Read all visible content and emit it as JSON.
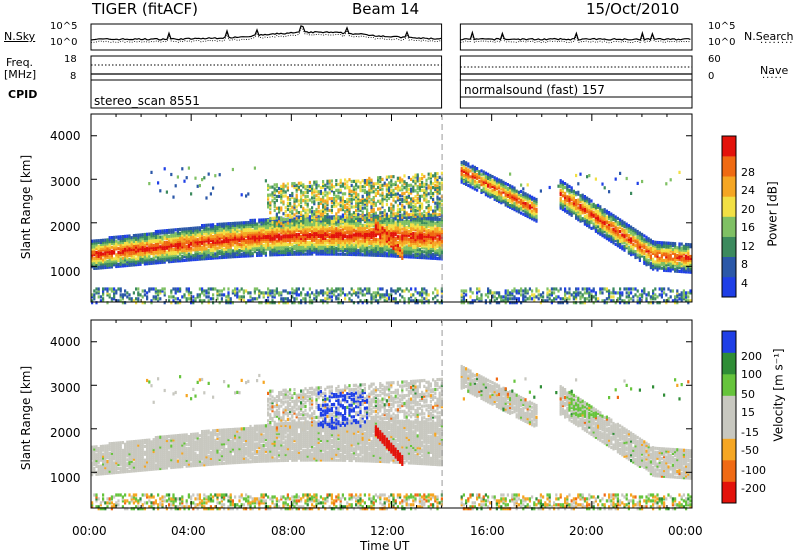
{
  "header": {
    "title": "TIGER (fitACF)",
    "beam": "Beam 14",
    "date": "15/Oct/2010"
  },
  "sky_panel": {
    "left_label": "N.Sky",
    "right_label": "N.Search",
    "left_ticks": [
      "10^5",
      "10^0"
    ],
    "right_ticks": [
      "10^5",
      "10^0"
    ]
  },
  "freq_panel": {
    "left_label_1": "Freq.",
    "left_label_2": "[MHz]",
    "right_label": "Nave",
    "left_ticks": [
      "18",
      "8"
    ],
    "right_ticks": [
      "60",
      "0"
    ]
  },
  "cpid_panel": {
    "label": "CPID",
    "left_program": "stereo_scan 8551",
    "right_program": "normalsound (fast) 157"
  },
  "axes": {
    "x_label": "Time UT",
    "x_ticks": [
      "00:00",
      "04:00",
      "08:00",
      "12:00",
      "16:00",
      "20:00",
      "00:00"
    ],
    "y_label": "Slant Range [km]",
    "y_ticks": [
      "4000",
      "3000",
      "2000",
      "1000"
    ]
  },
  "power_colorbar": {
    "title": "Power [dB]",
    "ticks": [
      "28",
      "24",
      "20",
      "16",
      "12",
      "8",
      "4"
    ]
  },
  "velocity_colorbar": {
    "title": "Velocity [m s⁻¹]",
    "ticks": [
      "200",
      "100",
      "50",
      "15",
      "-15",
      "-50",
      "-100",
      "-200"
    ]
  },
  "colors": {
    "power_scale": [
      "#1f3fe6",
      "#2b58a8",
      "#3c8a5e",
      "#7fc064",
      "#f2e044",
      "#f5a623",
      "#ef6a12",
      "#e3120b"
    ],
    "velocity_scale": [
      "#e3120b",
      "#f06a14",
      "#f5a623",
      "#c8c8c0",
      "#c8c8c0",
      "#66c43c",
      "#2f8d36",
      "#1f3fe6"
    ],
    "data_gap": "#999999"
  },
  "chart_data": [
    {
      "type": "heatmap",
      "title": "Power [dB]",
      "xlabel": "Time UT",
      "ylabel": "Slant Range [km]",
      "xlim": [
        "00:00",
        "24:00"
      ],
      "ylim": [
        180,
        4500
      ],
      "zlim": [
        0,
        30
      ],
      "data_gap_ut": [
        "14:00",
        "14:45"
      ],
      "features": [
        {
          "name": "main band",
          "ut": [
            "00:00",
            "13:50"
          ],
          "range_km": [
            1100,
            1800
          ],
          "peak_power_db": 28
        },
        {
          "name": "upper band",
          "ut": [
            "07:00",
            "13:50"
          ],
          "range_km": [
            1900,
            3100
          ],
          "power_db": 16
        },
        {
          "name": "morning echoes",
          "ut": [
            "14:50",
            "17:30"
          ],
          "range_km": [
            1800,
            3000
          ],
          "power_db": 16
        },
        {
          "name": "evening echoes",
          "ut": [
            "18:30",
            "23:59"
          ],
          "range_km": [
            1000,
            3000
          ],
          "peak_power_db": 28
        },
        {
          "name": "near-range clutter",
          "ut": [
            "00:00",
            "23:59"
          ],
          "range_km": [
            200,
            500
          ],
          "power_db": 4
        }
      ]
    },
    {
      "type": "heatmap",
      "title": "Velocity [m s⁻¹]",
      "xlabel": "Time UT",
      "ylabel": "Slant Range [km]",
      "xlim": [
        "00:00",
        "24:00"
      ],
      "ylim": [
        180,
        4500
      ],
      "zlim": [
        -200,
        200
      ],
      "data_gap_ut": [
        "14:00",
        "14:45"
      ],
      "features": [
        {
          "name": "ground scatter band",
          "ut": [
            "00:00",
            "13:50"
          ],
          "range_km": [
            1100,
            1900
          ],
          "velocity": -10
        },
        {
          "name": "positive velocity patch",
          "ut": [
            "09:00",
            "11:00"
          ],
          "range_km": [
            2000,
            2900
          ],
          "velocity": 200
        },
        {
          "name": "negative streak",
          "ut": [
            "11:30",
            "12:20"
          ],
          "range_km": [
            1200,
            1800
          ],
          "velocity": -200
        },
        {
          "name": "evening green band",
          "ut": [
            "19:00",
            "21:00"
          ],
          "range_km": [
            2400,
            3300
          ],
          "velocity": 40
        }
      ]
    }
  ]
}
